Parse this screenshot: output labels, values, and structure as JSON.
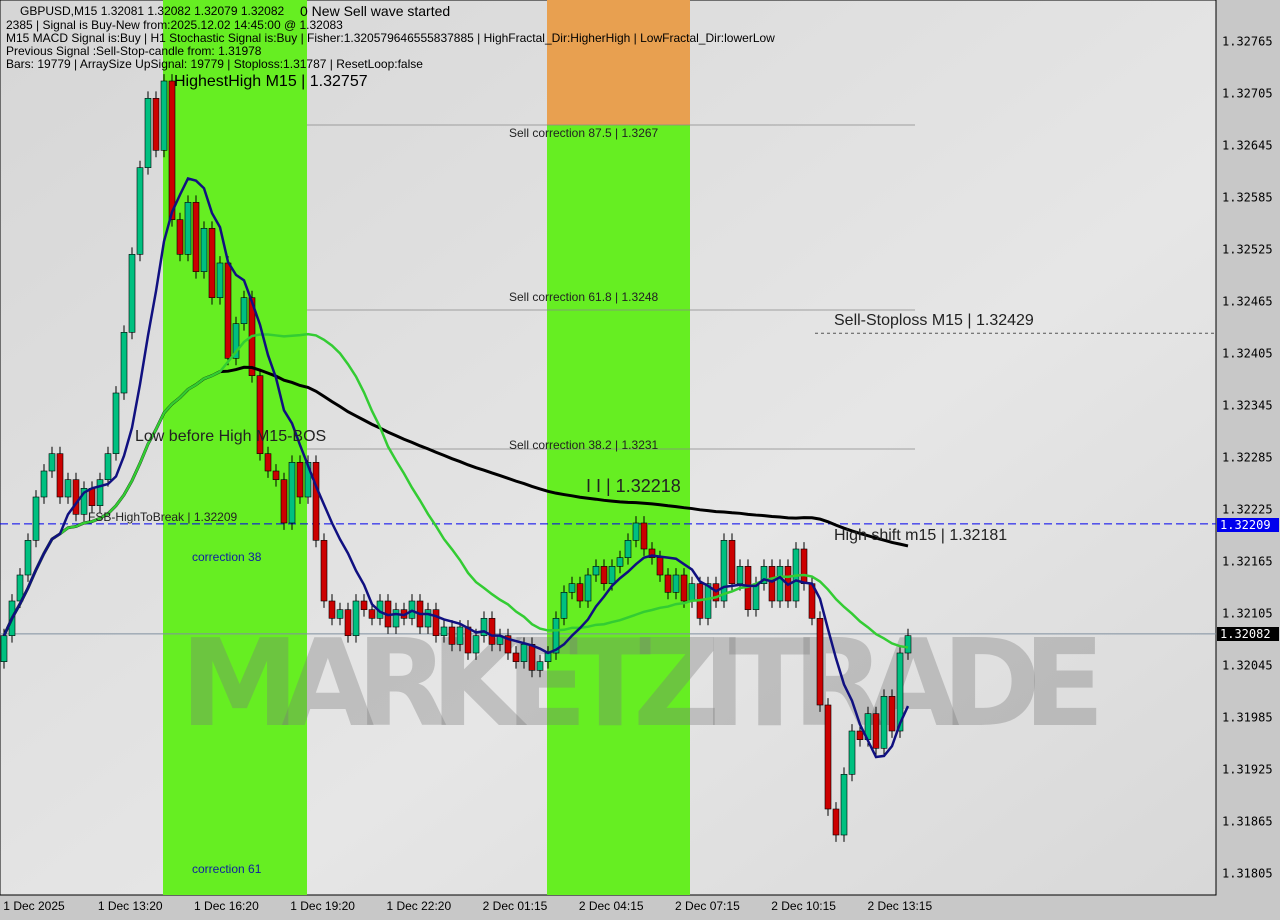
{
  "header": {
    "symbol_line": "GBPUSD,M15  1.32081 1.32082 1.32079 1.32082",
    "overlay_line": "0 New Sell wave started",
    "signal_line": "2385 | Signal is Buy-New from:2025.12.02 14:45:00 @ 1.32083",
    "macd_line": "M15 MACD Signal is:Buy | H1 Stochastic Signal is:Buy | Fisher:1.320579646555837885 | HighFractal_Dir:HigherHigh | LowFractal_Dir:lowerLow",
    "highest_high": "HighestHigh  M15 | 1.32757",
    "previous_line": "Previous Signal :Sell-Stop-candle from: 1.31978",
    "bars_line": "Bars: 19779 | ArraySize UpSignal: 19779 | Stoploss:1.31787 | ResetLoop:false"
  },
  "annotations": {
    "sell_875": "Sell correction 87.5 | 1.3267",
    "sell_618": "Sell correction 61.8 | 1.3248",
    "sell_382": "Sell correction 38.2 | 1.3231",
    "low_before_high": "Low before High  M15-BOS",
    "fsb": "FSB-HighToBreak | 1.32209",
    "corr38": "correction 38",
    "corr61": "correction 61",
    "level_ii": "I I | 1.32218",
    "sell_stoploss": "Sell-Stoploss M15 | 1.32429",
    "high_shift": "High shift m15 | 1.32181",
    "watermark": "MARKETZITRADE"
  },
  "colors": {
    "bull": "#00c080",
    "bear": "#cc0000",
    "zone_green": "#66ee22",
    "zone_orange": "#e8a050",
    "ma_fast": "#101080",
    "ma_mid": "#33cc33",
    "ma_slow": "#000000",
    "fsb_line": "#0000ee",
    "price_tag": "#000000"
  },
  "chart_data": {
    "type": "candlestick",
    "symbol": "GBPUSD",
    "timeframe": "M15",
    "ylim": [
      1.3177,
      1.3282
    ],
    "y_ticks": [
      "1.32765",
      "1.32705",
      "1.32645",
      "1.32585",
      "1.32525",
      "1.32465",
      "1.32405",
      "1.32345",
      "1.32285",
      "1.32225",
      "1.32165",
      "1.32105",
      "1.32045",
      "1.31985",
      "1.31925",
      "1.31865",
      "1.31805"
    ],
    "x_ticks": [
      "1 Dec 2025",
      "1 Dec 13:20",
      "1 Dec 16:20",
      "1 Dec 19:20",
      "1 Dec 22:20",
      "2 Dec 01:15",
      "2 Dec 04:15",
      "2 Dec 07:15",
      "2 Dec 10:15",
      "2 Dec 13:15"
    ],
    "current_price": "1.32082",
    "fsb_level": "1.32209",
    "closes": [
      1.3208,
      1.3212,
      1.3215,
      1.3219,
      1.3224,
      1.3227,
      1.3229,
      1.3224,
      1.3226,
      1.3222,
      1.3225,
      1.3223,
      1.3226,
      1.3229,
      1.3236,
      1.3243,
      1.3252,
      1.3262,
      1.327,
      1.3264,
      1.3272,
      1.3256,
      1.3252,
      1.3258,
      1.325,
      1.3255,
      1.3247,
      1.3251,
      1.324,
      1.3244,
      1.3247,
      1.3238,
      1.3229,
      1.3227,
      1.3226,
      1.3221,
      1.3228,
      1.3224,
      1.3228,
      1.3219,
      1.3212,
      1.321,
      1.3211,
      1.3208,
      1.3212,
      1.3211,
      1.321,
      1.3212,
      1.3209,
      1.3211,
      1.321,
      1.3212,
      1.3209,
      1.3211,
      1.3208,
      1.3209,
      1.3207,
      1.3209,
      1.3206,
      1.3208,
      1.321,
      1.3207,
      1.3208,
      1.3206,
      1.3205,
      1.3207,
      1.3204,
      1.3205,
      1.3206,
      1.321,
      1.3213,
      1.3214,
      1.3212,
      1.3215,
      1.3216,
      1.3214,
      1.3216,
      1.3217,
      1.3219,
      1.3221,
      1.3218,
      1.3217,
      1.3215,
      1.3213,
      1.3215,
      1.3212,
      1.3214,
      1.321,
      1.3214,
      1.3212,
      1.3219,
      1.3214,
      1.3216,
      1.3211,
      1.3214,
      1.3216,
      1.3212,
      1.3216,
      1.3212,
      1.3218,
      1.3214,
      1.321,
      1.32,
      1.3188,
      1.3185,
      1.3192,
      1.3197,
      1.3196,
      1.3199,
      1.3195,
      1.3201,
      1.3197,
      1.3206,
      1.3208
    ]
  }
}
